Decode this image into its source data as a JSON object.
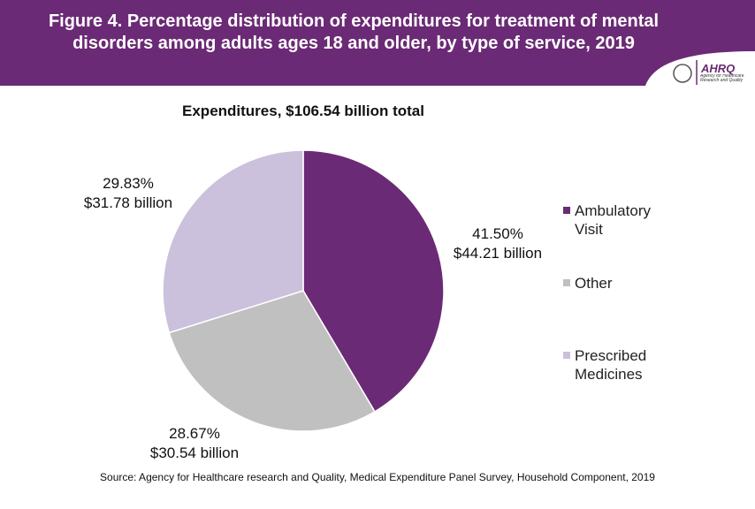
{
  "chart_data": {
    "type": "pie",
    "title": "Figure 4. Percentage distribution of expenditures for treatment of mental disorders among adults ages 18 and older, by type of service, 2019",
    "subtitle": "Expenditures, $106.54 billion total",
    "categories": [
      "Ambulatory Visit",
      "Other",
      "Prescribed Medicines"
    ],
    "values": [
      41.5,
      28.67,
      29.83
    ],
    "value_labels": [
      "41.50%",
      "28.67%",
      "29.83%"
    ],
    "amounts": [
      44.21,
      30.54,
      31.78
    ],
    "amount_labels": [
      "$44.21 billion",
      "$30.54 billion",
      "$31.78 billion"
    ],
    "colors": [
      "#6b2a75",
      "#c0c0c0",
      "#cbc1dd"
    ],
    "legend": "right",
    "source": "Source: Agency for Healthcare research and Quality, Medical Expenditure Panel Survey,  Household Component, 2019"
  },
  "logo": {
    "name": "AHRQ",
    "tagline": "Agency for Healthcare Research and Quality"
  }
}
